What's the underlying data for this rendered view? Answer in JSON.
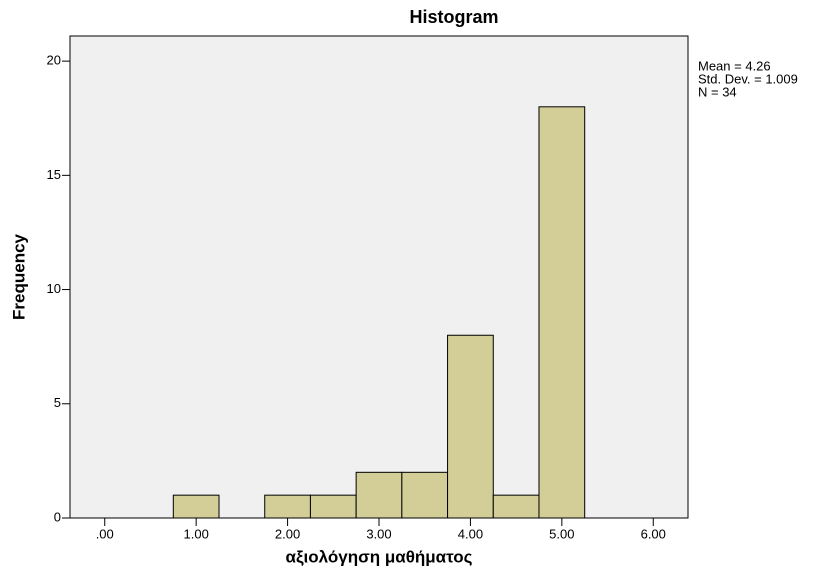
{
  "chart_data": {
    "type": "histogram",
    "title": "Histogram",
    "xlabel": "αξιολόγηση μαθήματος",
    "ylabel": "Frequency",
    "bins": [
      0.75,
      1.25,
      1.75,
      2.25,
      2.75,
      3.25,
      3.75,
      4.25,
      4.75,
      5.25
    ],
    "values": [
      1,
      0,
      1,
      1,
      2,
      2,
      8,
      1,
      18
    ],
    "color": "#d3ce97",
    "background": "#f0f0f0",
    "xlim": [
      -0.38,
      6.38
    ],
    "ylim": [
      0,
      21.1
    ],
    "xticks": [
      {
        "value": 0,
        "label": ".00"
      },
      {
        "value": 1,
        "label": "1.00"
      },
      {
        "value": 2,
        "label": "2.00"
      },
      {
        "value": 3,
        "label": "3.00"
      },
      {
        "value": 4,
        "label": "4.00"
      },
      {
        "value": 5,
        "label": "5.00"
      },
      {
        "value": 6,
        "label": "6.00"
      }
    ],
    "yticks": [
      0,
      5,
      10,
      15,
      20
    ],
    "annotations": [
      "Mean = 4.26",
      "Std. Dev. = 1.009",
      "N = 34"
    ]
  }
}
